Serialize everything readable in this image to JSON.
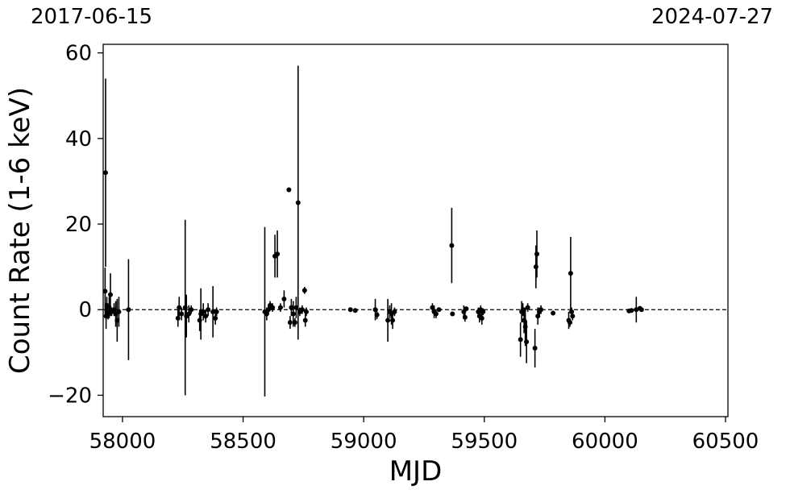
{
  "top_dates": {
    "start": "2017-06-15",
    "end": "2024-07-27"
  },
  "chart_data": {
    "type": "scatter",
    "title": "",
    "xlabel": "MJD",
    "ylabel": "Count Rate (1-6 keV)",
    "xlim": [
      57920,
      60510
    ],
    "ylim": [
      -25,
      62
    ],
    "xticks": [
      58000,
      58500,
      59000,
      59500,
      60000,
      60500
    ],
    "xtick_labels": [
      "58000",
      "58500",
      "59000",
      "59500",
      "60000",
      "60500"
    ],
    "yticks": [
      -20,
      0,
      20,
      40,
      60
    ],
    "ytick_labels": [
      "−20",
      "0",
      "20",
      "40",
      "60"
    ],
    "reference_line": {
      "y": 0,
      "style": "dashed"
    },
    "grid": false,
    "legend": "none",
    "marker_color": "#000000",
    "points": [
      {
        "x": 57930,
        "y": 32.0,
        "err": 22.0
      },
      {
        "x": 57928,
        "y": 4.3,
        "err": 5.5
      },
      {
        "x": 57932,
        "y": -1.5,
        "err": 3.0
      },
      {
        "x": 57935,
        "y": 1.0,
        "err": 2.0
      },
      {
        "x": 57940,
        "y": -0.8,
        "err": 1.5
      },
      {
        "x": 57945,
        "y": 0.5,
        "err": 2.5
      },
      {
        "x": 57950,
        "y": 3.5,
        "err": 5.0
      },
      {
        "x": 57955,
        "y": -0.5,
        "err": 1.0
      },
      {
        "x": 57965,
        "y": 0.0,
        "err": 1.5
      },
      {
        "x": 57972,
        "y": -1.0,
        "err": 3.0
      },
      {
        "x": 57978,
        "y": -2.5,
        "err": 5.0
      },
      {
        "x": 57985,
        "y": -0.5,
        "err": 3.5
      },
      {
        "x": 58025,
        "y": 0.0,
        "err": 11.8
      },
      {
        "x": 58230,
        "y": -2.0,
        "err": 2.0
      },
      {
        "x": 58235,
        "y": 0.5,
        "err": 2.5
      },
      {
        "x": 58245,
        "y": -1.0,
        "err": 1.5
      },
      {
        "x": 58260,
        "y": 0.5,
        "err": 20.5
      },
      {
        "x": 58265,
        "y": -1.5,
        "err": 5.0
      },
      {
        "x": 58275,
        "y": -1.0,
        "err": 2.0
      },
      {
        "x": 58285,
        "y": 0.0,
        "err": 1.0
      },
      {
        "x": 58320,
        "y": -2.5,
        "err": 2.5
      },
      {
        "x": 58325,
        "y": -1.0,
        "err": 6.0
      },
      {
        "x": 58335,
        "y": -0.5,
        "err": 2.0
      },
      {
        "x": 58345,
        "y": -1.5,
        "err": 1.5
      },
      {
        "x": 58355,
        "y": 0.0,
        "err": 1.5
      },
      {
        "x": 58375,
        "y": -0.5,
        "err": 6.0
      },
      {
        "x": 58385,
        "y": -2.0,
        "err": 1.5
      },
      {
        "x": 58390,
        "y": -0.5,
        "err": 1.0
      },
      {
        "x": 58590,
        "y": -0.5,
        "err": 19.8
      },
      {
        "x": 58598,
        "y": -1.0,
        "err": 1.5
      },
      {
        "x": 58605,
        "y": 0.0,
        "err": 1.0
      },
      {
        "x": 58612,
        "y": 1.0,
        "err": 1.0
      },
      {
        "x": 58622,
        "y": 0.5,
        "err": 1.0
      },
      {
        "x": 58632,
        "y": 12.5,
        "err": 5.0
      },
      {
        "x": 58642,
        "y": 13.0,
        "err": 5.5
      },
      {
        "x": 58655,
        "y": 0.5,
        "err": 1.0
      },
      {
        "x": 58670,
        "y": 2.5,
        "err": 2.0
      },
      {
        "x": 58690,
        "y": 28.0,
        "err": 0.5
      },
      {
        "x": 58695,
        "y": -3.0,
        "err": 1.5
      },
      {
        "x": 58700,
        "y": 0.5,
        "err": 2.0
      },
      {
        "x": 58708,
        "y": -1.0,
        "err": 3.0
      },
      {
        "x": 58715,
        "y": -3.0,
        "err": 1.0
      },
      {
        "x": 58720,
        "y": 0.5,
        "err": 2.5
      },
      {
        "x": 58728,
        "y": 25.0,
        "err": 32.0
      },
      {
        "x": 58735,
        "y": -0.5,
        "err": 1.0
      },
      {
        "x": 58745,
        "y": 0.0,
        "err": 1.0
      },
      {
        "x": 58755,
        "y": 4.5,
        "err": 0.8
      },
      {
        "x": 58758,
        "y": -2.5,
        "err": 1.5
      },
      {
        "x": 58762,
        "y": -0.5,
        "err": 1.0
      },
      {
        "x": 58945,
        "y": 0.0,
        "err": 0.5
      },
      {
        "x": 58965,
        "y": -0.2,
        "err": 0.3
      },
      {
        "x": 59048,
        "y": 0.0,
        "err": 2.5
      },
      {
        "x": 59055,
        "y": -1.2,
        "err": 1.0
      },
      {
        "x": 59100,
        "y": -2.5,
        "err": 5.0
      },
      {
        "x": 59108,
        "y": -0.5,
        "err": 1.5
      },
      {
        "x": 59115,
        "y": -1.0,
        "err": 2.5
      },
      {
        "x": 59120,
        "y": -2.5,
        "err": 2.0
      },
      {
        "x": 59128,
        "y": -0.5,
        "err": 1.0
      },
      {
        "x": 59285,
        "y": 0.5,
        "err": 1.0
      },
      {
        "x": 59292,
        "y": -0.5,
        "err": 1.5
      },
      {
        "x": 59300,
        "y": -1.0,
        "err": 1.0
      },
      {
        "x": 59312,
        "y": 0.0,
        "err": 0.5
      },
      {
        "x": 59365,
        "y": 15.0,
        "err": 8.8
      },
      {
        "x": 59368,
        "y": -1.0,
        "err": 0.5
      },
      {
        "x": 59415,
        "y": -0.5,
        "err": 1.5
      },
      {
        "x": 59420,
        "y": -1.8,
        "err": 1.0
      },
      {
        "x": 59425,
        "y": 0.2,
        "err": 0.5
      },
      {
        "x": 59475,
        "y": -0.5,
        "err": 1.0
      },
      {
        "x": 59480,
        "y": -1.5,
        "err": 1.5
      },
      {
        "x": 59485,
        "y": 0.0,
        "err": 1.0
      },
      {
        "x": 59490,
        "y": -2.0,
        "err": 1.5
      },
      {
        "x": 59495,
        "y": -0.5,
        "err": 0.8
      },
      {
        "x": 59650,
        "y": -7.0,
        "err": 4.0
      },
      {
        "x": 59655,
        "y": -0.5,
        "err": 2.5
      },
      {
        "x": 59660,
        "y": 0.0,
        "err": 1.5
      },
      {
        "x": 59665,
        "y": -2.5,
        "err": 3.0
      },
      {
        "x": 59670,
        "y": -4.0,
        "err": 4.5
      },
      {
        "x": 59675,
        "y": -7.5,
        "err": 5.0
      },
      {
        "x": 59680,
        "y": 0.5,
        "err": 1.0
      },
      {
        "x": 59710,
        "y": -9.0,
        "err": 4.5
      },
      {
        "x": 59714,
        "y": 10.0,
        "err": 5.0
      },
      {
        "x": 59718,
        "y": 13.0,
        "err": 5.5
      },
      {
        "x": 59722,
        "y": -1.5,
        "err": 2.0
      },
      {
        "x": 59728,
        "y": -0.5,
        "err": 1.0
      },
      {
        "x": 59735,
        "y": 0.0,
        "err": 1.0
      },
      {
        "x": 59785,
        "y": -0.8,
        "err": 0.5
      },
      {
        "x": 59850,
        "y": -2.5,
        "err": 2.0
      },
      {
        "x": 59855,
        "y": -3.0,
        "err": 1.0
      },
      {
        "x": 59858,
        "y": 8.5,
        "err": 8.5
      },
      {
        "x": 59862,
        "y": -0.5,
        "err": 1.0
      },
      {
        "x": 59866,
        "y": -1.5,
        "err": 1.0
      },
      {
        "x": 60100,
        "y": -0.3,
        "err": 0.3
      },
      {
        "x": 60110,
        "y": -0.2,
        "err": 0.3
      },
      {
        "x": 60130,
        "y": 0.0,
        "err": 3.0
      },
      {
        "x": 60145,
        "y": 0.3,
        "err": 0.5
      },
      {
        "x": 60152,
        "y": 0.0,
        "err": 0.3
      }
    ]
  }
}
